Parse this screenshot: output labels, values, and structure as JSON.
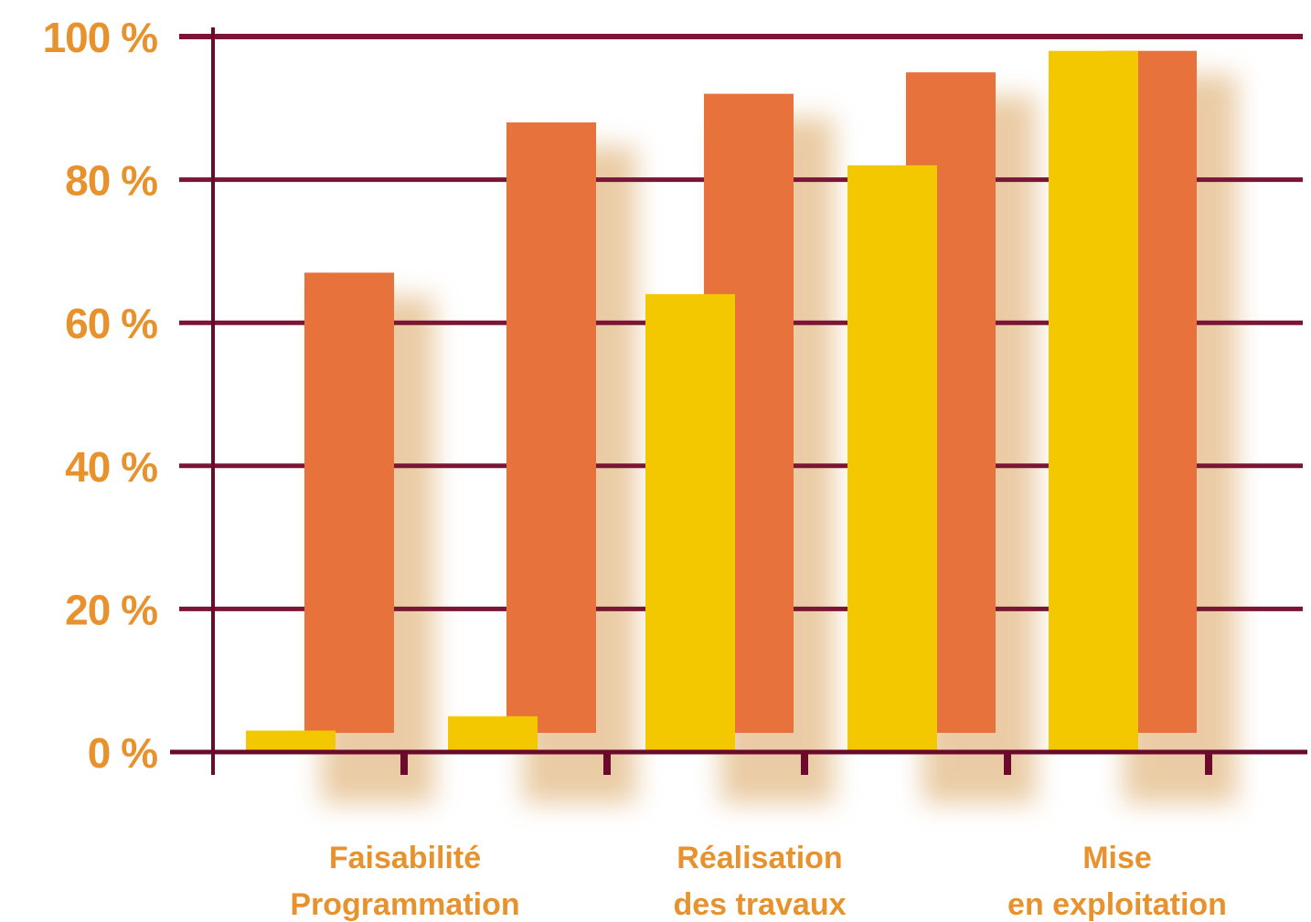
{
  "colors": {
    "axis": "#6b0a2c",
    "grid": "#7a1536",
    "label": "#e8922e",
    "series_a": "#f3c800",
    "series_b": "#e8723c",
    "shadow": "#d9a25c"
  },
  "chart_data": {
    "type": "bar",
    "ylim": [
      0,
      100
    ],
    "y_ticks": [
      {
        "value": 0,
        "label": "0 %"
      },
      {
        "value": 20,
        "label": "20 %"
      },
      {
        "value": 40,
        "label": "40 %"
      },
      {
        "value": 60,
        "label": "60 %"
      },
      {
        "value": 80,
        "label": "80 %"
      },
      {
        "value": 100,
        "label": "100 %"
      }
    ],
    "stage_labels": [
      [
        "Faisabilité",
        "Programmation"
      ],
      [
        "Réalisation",
        "des travaux"
      ],
      [
        "Mise",
        "en exploitation"
      ]
    ],
    "series": [
      {
        "color": "#f3c800",
        "values": [
          3,
          5,
          64,
          82,
          98
        ]
      },
      {
        "color": "#e8723c",
        "values": [
          67,
          88,
          92,
          95,
          98
        ]
      }
    ],
    "grid": true,
    "legend": "none"
  }
}
